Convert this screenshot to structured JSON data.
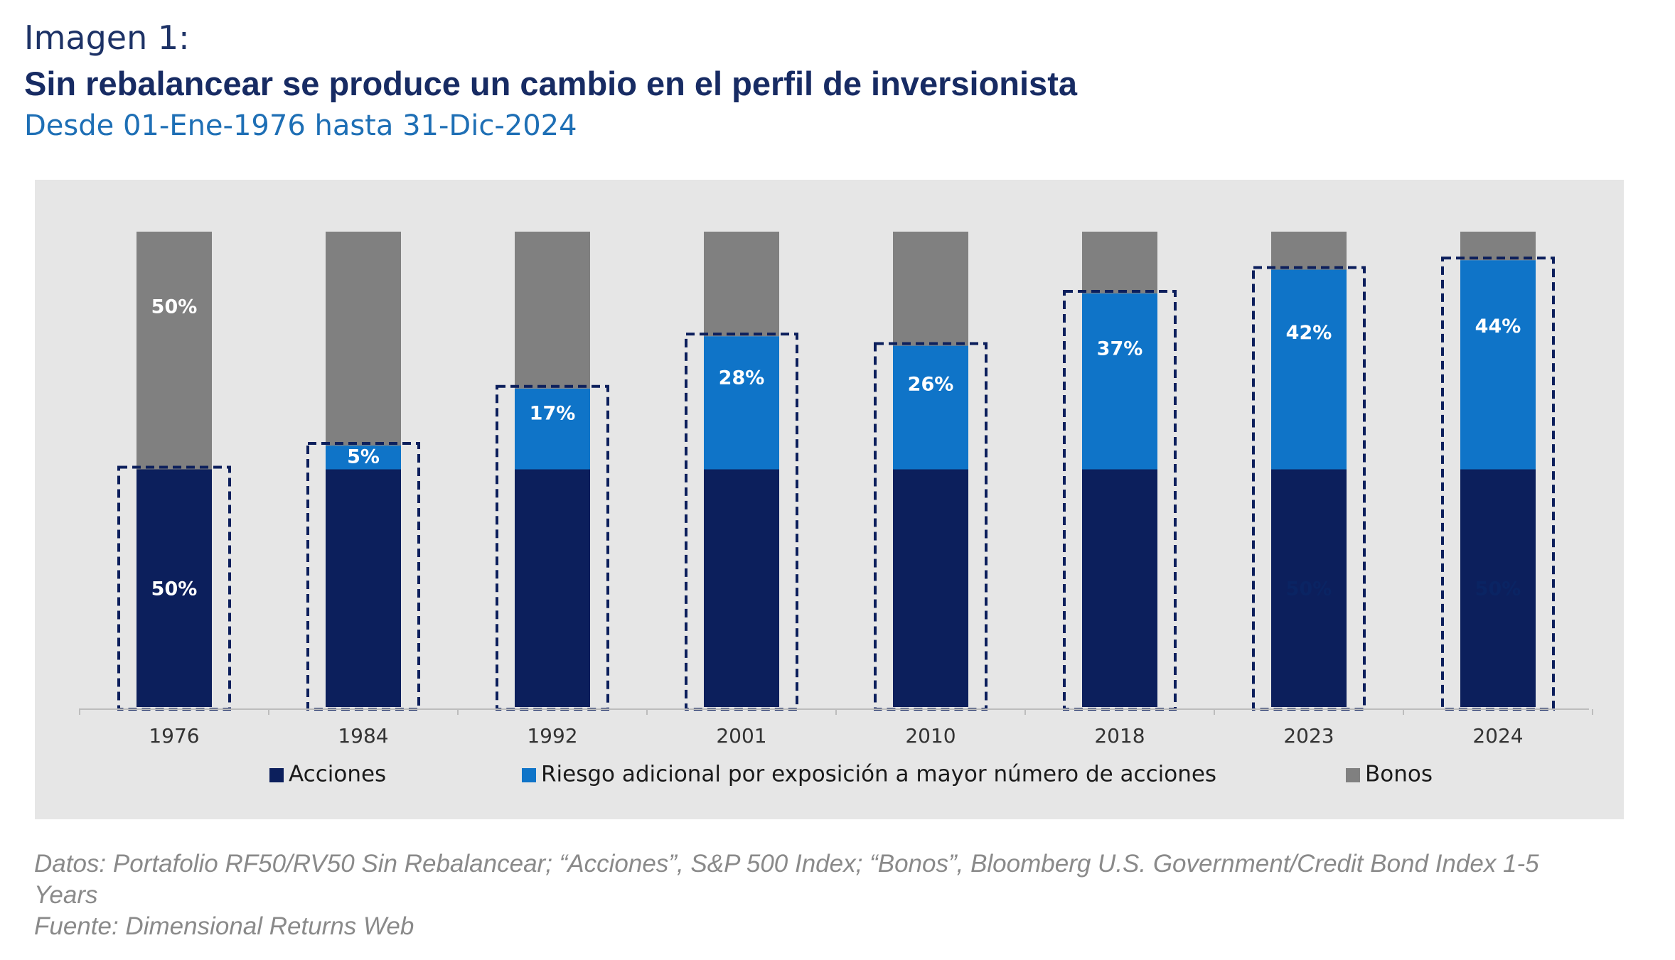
{
  "header": {
    "label": "Imagen 1:",
    "title": "Sin rebalancear se produce un cambio en el perfil de inversionista",
    "subtitle": "Desde 01-Ene-1976 hasta 31-Dic-2024"
  },
  "footnotes": {
    "line1": "Datos: Portafolio RF50/RV50 Sin Rebalancear; “Acciones”, S&P 500 Index; “Bonos”, Bloomberg U.S. Government/Credit Bond Index 1-5",
    "line2": "Years",
    "line3": "Fuente: Dimensional Returns Web"
  },
  "colors": {
    "panel_bg": "#e6e6e6",
    "acciones": "#0c1f5c",
    "riesgo": "#0f74c8",
    "bonos": "#808080",
    "dashed_box": "#0c1f5c",
    "label_on_dark": "#ffffff",
    "hidden_label": "#0a2463"
  },
  "chart_data": {
    "type": "bar",
    "stacked": true,
    "categories": [
      "1976",
      "1984",
      "1992",
      "2001",
      "2010",
      "2018",
      "2023",
      "2024"
    ],
    "series": [
      {
        "name": "Acciones",
        "color": "#0c1f5c",
        "values": [
          50,
          50,
          50,
          50,
          50,
          50,
          50,
          50
        ],
        "data_labels": [
          "50%",
          "",
          "",
          "",
          "",
          "",
          "50%",
          "50%"
        ]
      },
      {
        "name": "Riesgo adicional por exposición a mayor número de acciones",
        "color": "#0f74c8",
        "values": [
          0,
          5,
          17,
          28,
          26,
          37,
          42,
          44
        ],
        "data_labels": [
          "",
          "5%",
          "17%",
          "28%",
          "26%",
          "37%",
          "42%",
          "44%"
        ]
      },
      {
        "name": "Bonos",
        "color": "#808080",
        "values": [
          50,
          45,
          33,
          22,
          24,
          13,
          8,
          6
        ],
        "data_labels": [
          "50%",
          "",
          "",
          "",
          "",
          "",
          "",
          ""
        ]
      }
    ],
    "ylim": [
      0,
      100
    ],
    "grid": false,
    "y_axis_visible": false,
    "legend_position": "bottom",
    "annotations": "dashed outline around the Acciones + Riesgo adicional portion of each bar"
  }
}
